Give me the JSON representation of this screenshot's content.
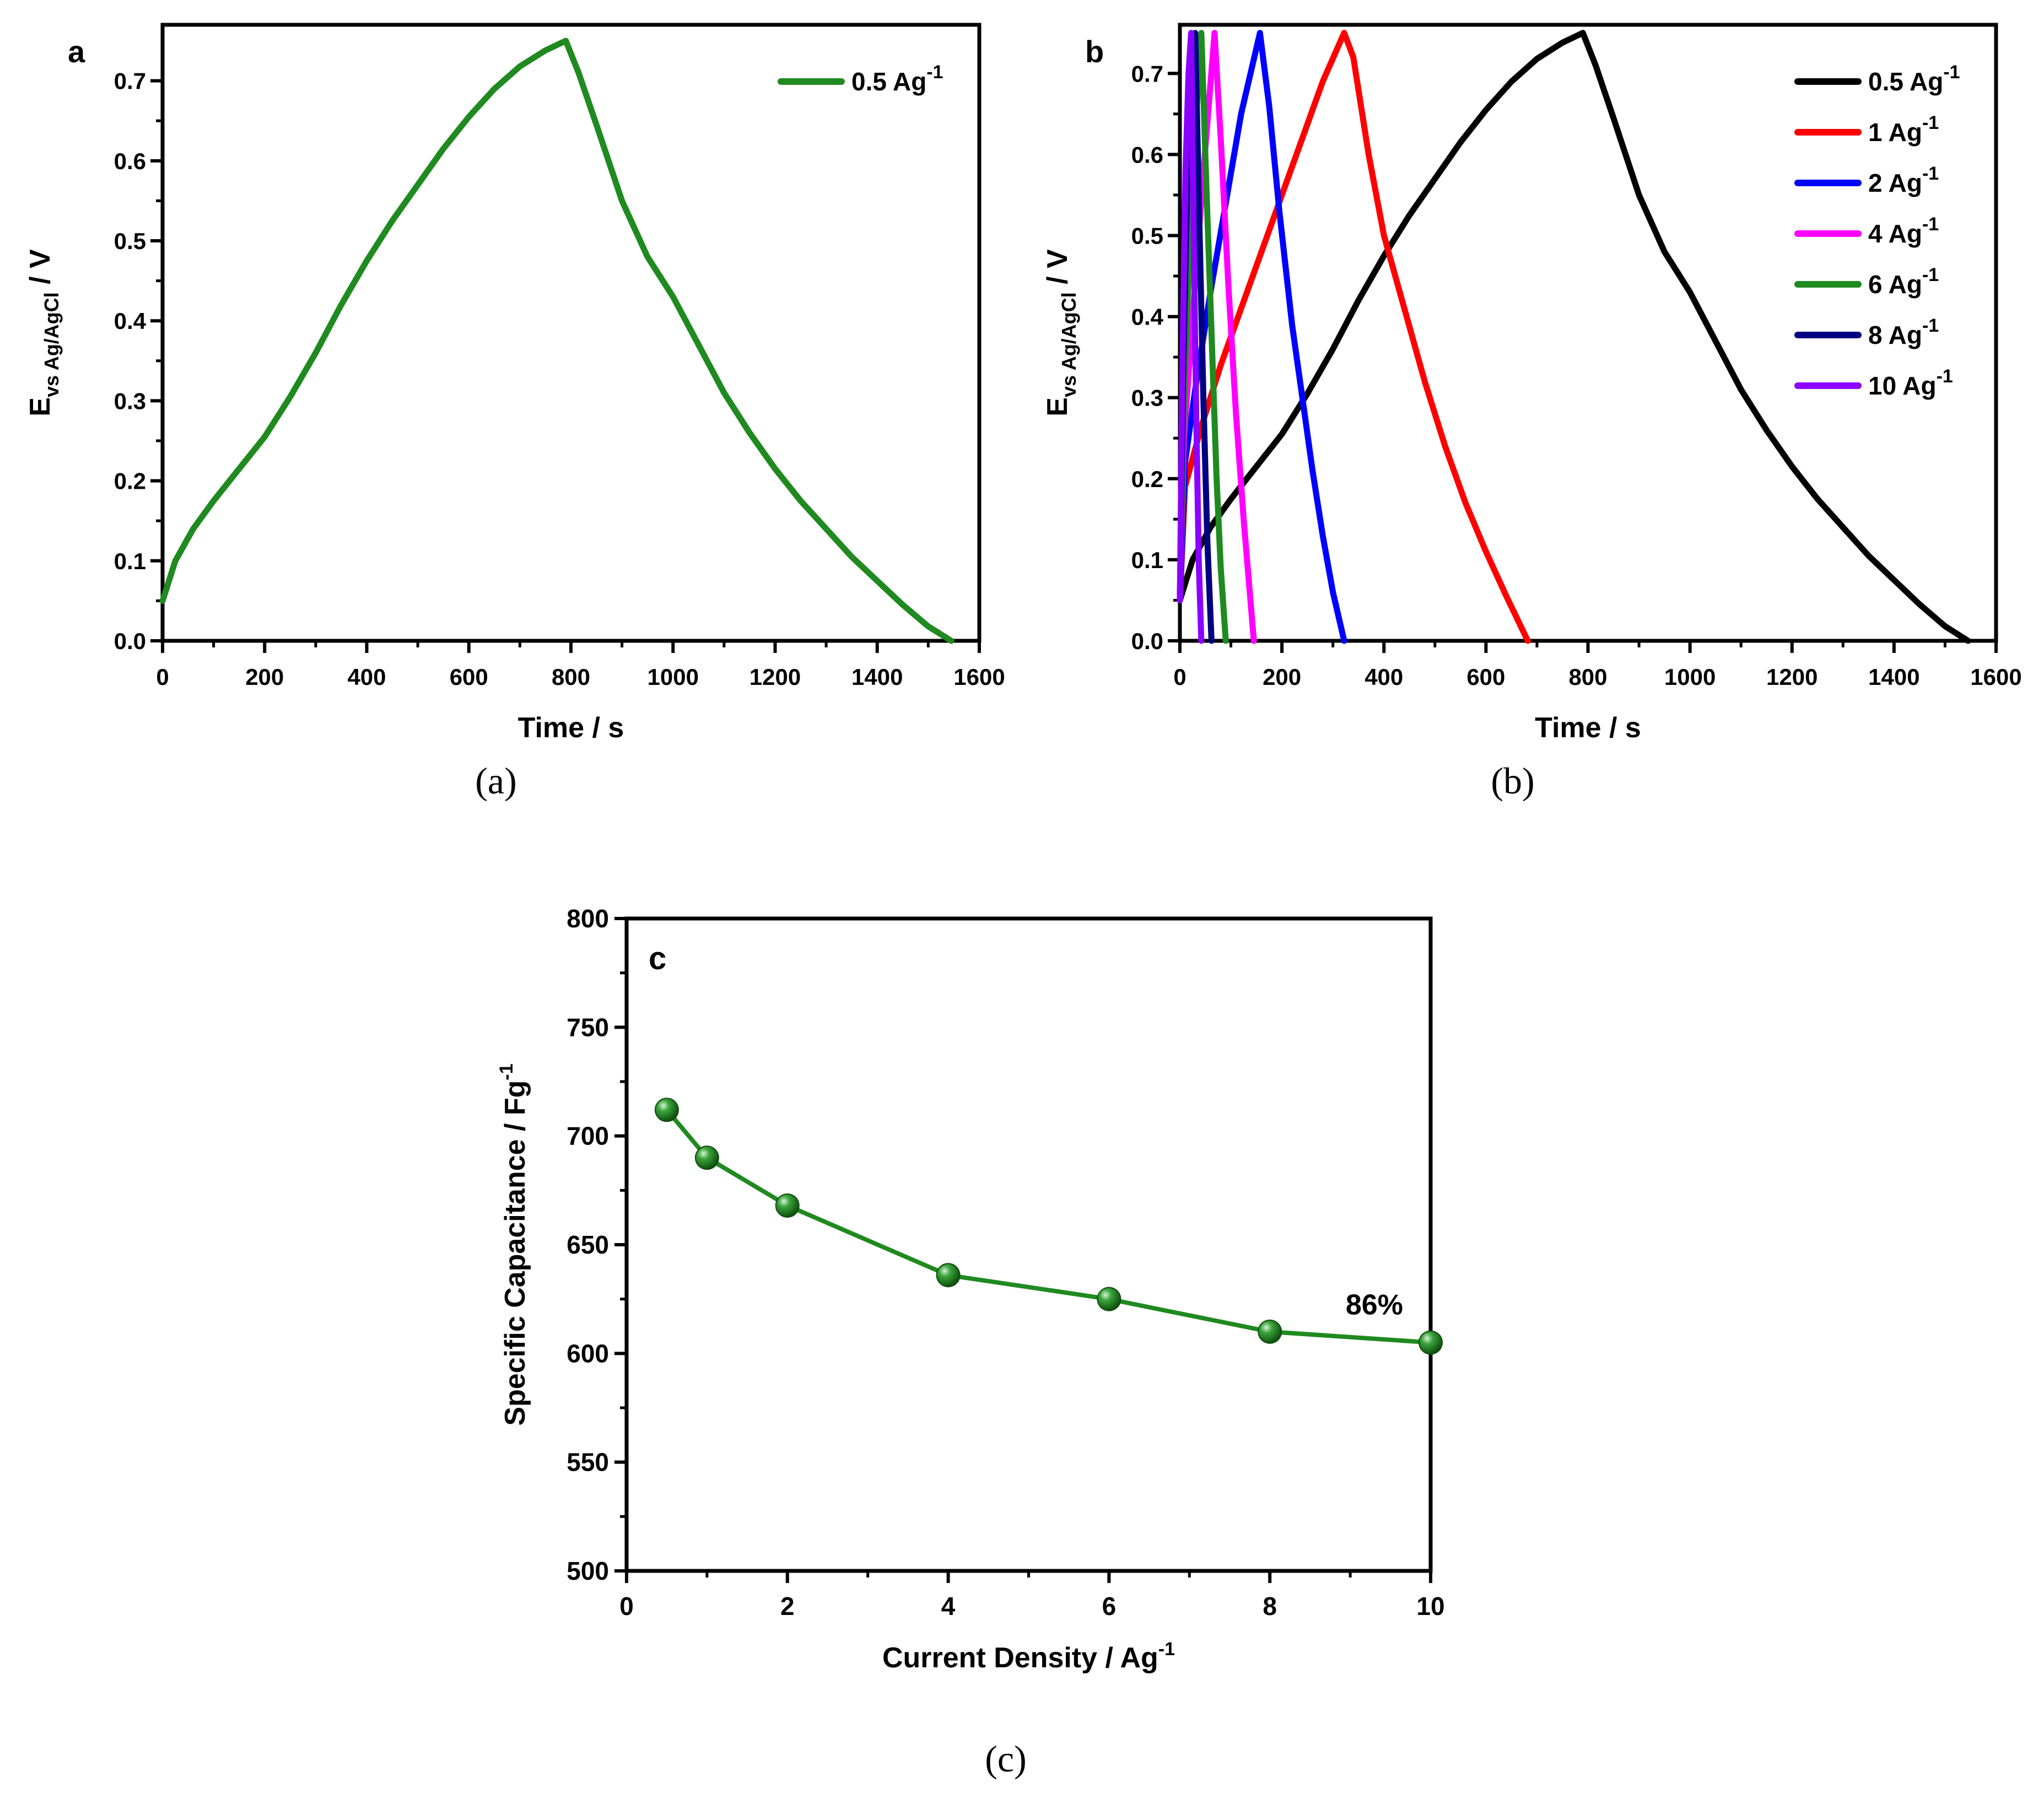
{
  "colors": {
    "black": "#000000",
    "red": "#ff0000",
    "blue": "#0000ff",
    "magenta": "#ff00ff",
    "green": "#1f8a1f",
    "navy": "#000080",
    "violet": "#8b00ff",
    "marker": "#1f8a1f"
  },
  "captions": {
    "a": "(a)",
    "b": "(b)",
    "c": "(c)"
  },
  "chart_data": [
    {
      "id": "a",
      "type": "line",
      "panel_label": "a",
      "xlabel": "Time / s",
      "ylabel": {
        "main": "E",
        "sub": "vs Ag/AgCl",
        "suffix": " / V"
      },
      "xlim": [
        0,
        1600
      ],
      "ylim": [
        0,
        0.77
      ],
      "xticks": [
        0,
        200,
        400,
        600,
        800,
        1000,
        1200,
        1400,
        1600
      ],
      "xtick_labels": [
        "0",
        "200",
        "400",
        "600",
        "800",
        "1000",
        "1200",
        "1400",
        "1600"
      ],
      "yticks": [
        0,
        0.1,
        0.2,
        0.3,
        0.4,
        0.5,
        0.6,
        0.7
      ],
      "ytick_labels": [
        "0.0",
        "0.1",
        "0.2",
        "0.3",
        "0.4",
        "0.5",
        "0.6",
        "0.7"
      ],
      "legend": {
        "position": "top-right"
      },
      "series": [
        {
          "name": "0.5 Ag-1",
          "label_base": "0.5 Ag",
          "label_sup": "-1",
          "color": "#1f8a1f",
          "x": [
            0,
            25,
            60,
            100,
            150,
            200,
            250,
            300,
            350,
            400,
            450,
            500,
            550,
            600,
            650,
            700,
            750,
            790,
            815,
            850,
            900,
            950,
            1000,
            1050,
            1100,
            1150,
            1200,
            1250,
            1300,
            1350,
            1400,
            1450,
            1500,
            1545
          ],
          "y": [
            0.05,
            0.1,
            0.14,
            0.175,
            0.215,
            0.255,
            0.305,
            0.36,
            0.42,
            0.475,
            0.525,
            0.57,
            0.615,
            0.655,
            0.69,
            0.718,
            0.738,
            0.75,
            0.71,
            0.645,
            0.55,
            0.48,
            0.43,
            0.37,
            0.31,
            0.26,
            0.215,
            0.175,
            0.14,
            0.105,
            0.075,
            0.045,
            0.018,
            0.0
          ]
        }
      ]
    },
    {
      "id": "b",
      "type": "line",
      "panel_label": "b",
      "xlabel": "Time / s",
      "ylabel": {
        "main": "E",
        "sub": "vs Ag/AgCl",
        "suffix": " / V"
      },
      "xlim": [
        0,
        1600
      ],
      "ylim": [
        0,
        0.76
      ],
      "xticks": [
        0,
        200,
        400,
        600,
        800,
        1000,
        1200,
        1400,
        1600
      ],
      "xtick_labels": [
        "0",
        "200",
        "400",
        "600",
        "800",
        "1000",
        "1200",
        "1400",
        "1600"
      ],
      "yticks": [
        0,
        0.1,
        0.2,
        0.3,
        0.4,
        0.5,
        0.6,
        0.7
      ],
      "ytick_labels": [
        "0.0",
        "0.1",
        "0.2",
        "0.3",
        "0.4",
        "0.5",
        "0.6",
        "0.7"
      ],
      "legend": {
        "position": "top-right"
      },
      "series": [
        {
          "name": "0.5 Ag-1",
          "label_base": "0.5 Ag",
          "label_sup": "-1",
          "color": "#000000",
          "x": [
            0,
            25,
            60,
            100,
            150,
            200,
            250,
            300,
            350,
            400,
            450,
            500,
            550,
            600,
            650,
            700,
            750,
            790,
            815,
            850,
            900,
            950,
            1000,
            1050,
            1100,
            1150,
            1200,
            1250,
            1300,
            1350,
            1400,
            1450,
            1500,
            1545
          ],
          "y": [
            0.05,
            0.1,
            0.14,
            0.175,
            0.215,
            0.255,
            0.305,
            0.36,
            0.42,
            0.475,
            0.525,
            0.57,
            0.615,
            0.655,
            0.69,
            0.718,
            0.738,
            0.75,
            0.71,
            0.645,
            0.55,
            0.48,
            0.43,
            0.37,
            0.31,
            0.26,
            0.215,
            0.175,
            0.14,
            0.105,
            0.075,
            0.045,
            0.018,
            0.0
          ]
        },
        {
          "name": "1 Ag-1",
          "label_base": "1 Ag",
          "label_sup": "-1",
          "color": "#ff0000",
          "x": [
            0,
            10,
            40,
            80,
            120,
            160,
            200,
            240,
            280,
            322,
            340,
            370,
            400,
            440,
            480,
            520,
            560,
            600,
            640,
            682
          ],
          "y": [
            0.05,
            0.19,
            0.26,
            0.34,
            0.41,
            0.48,
            0.55,
            0.62,
            0.69,
            0.75,
            0.72,
            0.6,
            0.5,
            0.41,
            0.32,
            0.24,
            0.17,
            0.11,
            0.055,
            0.0
          ]
        },
        {
          "name": "2 Ag-1",
          "label_base": "2 Ag",
          "label_sup": "-1",
          "color": "#0000ff",
          "x": [
            0,
            10,
            30,
            60,
            90,
            120,
            157,
            175,
            195,
            220,
            240,
            260,
            280,
            300,
            322
          ],
          "y": [
            0.05,
            0.22,
            0.31,
            0.43,
            0.54,
            0.65,
            0.75,
            0.66,
            0.53,
            0.39,
            0.3,
            0.21,
            0.13,
            0.06,
            0.0
          ]
        },
        {
          "name": "4 Ag-1",
          "label_base": "4 Ag",
          "label_sup": "-1",
          "color": "#ff00ff",
          "x": [
            0,
            8,
            25,
            45,
            68,
            80,
            95,
            110,
            125,
            145
          ],
          "y": [
            0.05,
            0.25,
            0.4,
            0.57,
            0.75,
            0.62,
            0.44,
            0.28,
            0.15,
            0.0
          ]
        },
        {
          "name": "6 Ag-1",
          "label_base": "6 Ag",
          "label_sup": "-1",
          "color": "#1f8a1f",
          "x": [
            0,
            8,
            20,
            32,
            42,
            52,
            62,
            72,
            80,
            90
          ],
          "y": [
            0.05,
            0.3,
            0.5,
            0.65,
            0.75,
            0.56,
            0.38,
            0.2,
            0.09,
            0.0
          ]
        },
        {
          "name": "8 Ag-1",
          "label_base": "8 Ag",
          "label_sup": "-1",
          "color": "#000080",
          "x": [
            0,
            6,
            14,
            22,
            30,
            38,
            46,
            54,
            62
          ],
          "y": [
            0.05,
            0.32,
            0.55,
            0.68,
            0.75,
            0.52,
            0.3,
            0.12,
            0.0
          ]
        },
        {
          "name": "10 Ag-1",
          "label_base": "10 Ag",
          "label_sup": "-1",
          "color": "#8b00ff",
          "x": [
            0,
            5,
            11,
            17,
            22,
            27,
            32,
            37,
            42
          ],
          "y": [
            0.05,
            0.34,
            0.58,
            0.7,
            0.75,
            0.5,
            0.28,
            0.1,
            0.0
          ]
        }
      ]
    },
    {
      "id": "c",
      "type": "line",
      "panel_label": "c",
      "xlabel": {
        "base": "Current Density / Ag",
        "sup": "-1"
      },
      "ylabel": {
        "base": "Specific Capacitance / Fg",
        "sup": "-1"
      },
      "xlim": [
        0,
        10
      ],
      "ylim": [
        500,
        800
      ],
      "xticks": [
        0,
        2,
        4,
        6,
        8,
        10
      ],
      "xtick_labels": [
        "0",
        "2",
        "4",
        "6",
        "8",
        "10"
      ],
      "yticks": [
        500,
        550,
        600,
        650,
        700,
        750,
        800
      ],
      "ytick_labels": [
        "500",
        "550",
        "600",
        "650",
        "700",
        "750",
        "800"
      ],
      "annotation": {
        "text": "86%",
        "x": 9.3,
        "y": 618
      },
      "series": [
        {
          "name": "Specific Capacitance",
          "color": "#1f8a1f",
          "x": [
            0.5,
            1,
            2,
            4,
            6,
            8,
            10
          ],
          "y": [
            712,
            690,
            668,
            636,
            625,
            610,
            605
          ]
        }
      ]
    }
  ]
}
